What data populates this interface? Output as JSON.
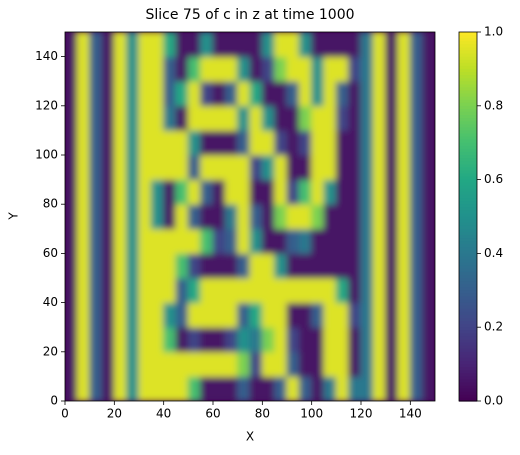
{
  "chart_data": {
    "type": "heatmap",
    "title": "Slice 75 of c in z at time 1000",
    "x_label": "X",
    "y_label": "Y",
    "xlim": [
      0,
      150
    ],
    "ylim": [
      0,
      150
    ],
    "xticks": [
      0,
      20,
      40,
      60,
      80,
      100,
      120,
      140
    ],
    "yticks": [
      0,
      20,
      40,
      60,
      80,
      100,
      120,
      140
    ],
    "colormap": "viridis",
    "clim": [
      0,
      1
    ],
    "cticks": [
      {
        "value": 0,
        "label": "0.0"
      },
      0.2,
      0.4,
      0.6,
      0.8,
      {
        "value": 1,
        "label": "1.0"
      }
    ],
    "x": [
      2.5,
      7.5,
      12.5,
      17.5,
      22.5,
      27.5,
      32.5,
      37.5,
      42.5,
      47.5,
      52.5,
      57.5,
      62.5,
      67.5,
      72.5,
      77.5,
      82.5,
      87.5,
      92.5,
      97.5,
      102.5,
      107.5,
      112.5,
      117.5,
      122.5,
      127.5,
      132.5,
      137.5,
      142.5,
      147.5
    ],
    "y": [
      5,
      15,
      25,
      35,
      45,
      55,
      65,
      75,
      85,
      95,
      105,
      115,
      125,
      135,
      145
    ],
    "z": [
      [
        0.05,
        0.95,
        0.3,
        0.05,
        0.95,
        0.5,
        0.95,
        0.95,
        0.95,
        0.95,
        0.7,
        0.05,
        0.05,
        0.05,
        0.3,
        0.05,
        0.05,
        0.3,
        0.95,
        0.3,
        0.05,
        0.4,
        0.95,
        0.4,
        0.4,
        0.95,
        0.05,
        0.95,
        0.3,
        0.05
      ],
      [
        0.05,
        0.95,
        0.3,
        0.05,
        0.95,
        0.5,
        0.95,
        0.95,
        0.95,
        0.95,
        0.95,
        0.95,
        0.95,
        0.95,
        0.8,
        0.2,
        0.95,
        0.95,
        0.3,
        0.05,
        0.05,
        0.95,
        0.95,
        0.05,
        0.4,
        0.95,
        0.05,
        0.95,
        0.3,
        0.05
      ],
      [
        0.05,
        0.95,
        0.3,
        0.05,
        0.95,
        0.5,
        0.95,
        0.95,
        0.7,
        0.05,
        0.2,
        0.05,
        0.05,
        0.2,
        0.5,
        0.4,
        0.8,
        0.95,
        0.2,
        0.05,
        0.05,
        0.95,
        0.95,
        0.05,
        0.4,
        0.95,
        0.05,
        0.95,
        0.3,
        0.05
      ],
      [
        0.05,
        0.95,
        0.3,
        0.05,
        0.95,
        0.5,
        0.95,
        0.95,
        0.5,
        0.3,
        0.95,
        0.95,
        0.95,
        0.95,
        0.3,
        0.6,
        0.95,
        0.95,
        0.05,
        0.05,
        0.3,
        0.95,
        0.95,
        0.2,
        0.4,
        0.95,
        0.05,
        0.95,
        0.3,
        0.05
      ],
      [
        0.05,
        0.95,
        0.3,
        0.05,
        0.95,
        0.5,
        0.95,
        0.95,
        0.95,
        0.3,
        0.6,
        0.95,
        0.95,
        0.95,
        0.95,
        0.95,
        0.95,
        0.95,
        0.95,
        0.95,
        0.95,
        0.95,
        0.6,
        0.05,
        0.4,
        0.95,
        0.05,
        0.95,
        0.3,
        0.05
      ],
      [
        0.05,
        0.95,
        0.3,
        0.05,
        0.95,
        0.5,
        0.95,
        0.95,
        0.95,
        0.7,
        0.2,
        0.05,
        0.05,
        0.05,
        0.3,
        0.95,
        0.95,
        0.5,
        0.05,
        0.05,
        0.05,
        0.05,
        0.05,
        0.05,
        0.4,
        0.95,
        0.05,
        0.95,
        0.3,
        0.05
      ],
      [
        0.05,
        0.95,
        0.3,
        0.05,
        0.95,
        0.5,
        0.95,
        0.95,
        0.95,
        0.95,
        0.95,
        0.7,
        0.2,
        0.3,
        0.95,
        0.5,
        0.05,
        0.05,
        0.3,
        0.4,
        0.05,
        0.05,
        0.05,
        0.05,
        0.4,
        0.95,
        0.05,
        0.95,
        0.3,
        0.05
      ],
      [
        0.05,
        0.95,
        0.3,
        0.05,
        0.95,
        0.5,
        0.95,
        0.5,
        0.05,
        0.95,
        0.3,
        0.05,
        0.05,
        0.4,
        0.95,
        0.3,
        0.05,
        0.8,
        0.95,
        0.95,
        0.8,
        0.05,
        0.05,
        0.05,
        0.4,
        0.95,
        0.05,
        0.95,
        0.3,
        0.05
      ],
      [
        0.05,
        0.95,
        0.3,
        0.05,
        0.95,
        0.5,
        0.95,
        0.5,
        0.05,
        0.7,
        0.95,
        0.3,
        0.05,
        0.95,
        0.95,
        0.05,
        0.05,
        0.95,
        0.2,
        0.7,
        0.95,
        0.5,
        0.05,
        0.05,
        0.4,
        0.95,
        0.05,
        0.95,
        0.3,
        0.05
      ],
      [
        0.05,
        0.95,
        0.3,
        0.05,
        0.95,
        0.5,
        0.95,
        0.95,
        0.95,
        0.95,
        0.3,
        0.95,
        0.95,
        0.95,
        0.95,
        0.2,
        0.5,
        0.95,
        0.05,
        0.05,
        0.95,
        0.95,
        0.05,
        0.05,
        0.4,
        0.95,
        0.05,
        0.95,
        0.3,
        0.05
      ],
      [
        0.05,
        0.95,
        0.3,
        0.05,
        0.95,
        0.5,
        0.95,
        0.95,
        0.95,
        0.95,
        0.5,
        0.05,
        0.05,
        0.05,
        0.3,
        0.95,
        0.95,
        0.2,
        0.05,
        0.2,
        0.95,
        0.95,
        0.05,
        0.05,
        0.4,
        0.95,
        0.05,
        0.95,
        0.3,
        0.05
      ],
      [
        0.05,
        0.95,
        0.3,
        0.05,
        0.95,
        0.5,
        0.95,
        0.95,
        0.4,
        0.05,
        0.95,
        0.95,
        0.95,
        0.95,
        0.5,
        0.95,
        0.5,
        0.05,
        0.05,
        0.8,
        0.95,
        0.95,
        0.2,
        0.05,
        0.4,
        0.95,
        0.05,
        0.95,
        0.3,
        0.05
      ],
      [
        0.05,
        0.95,
        0.3,
        0.05,
        0.95,
        0.5,
        0.95,
        0.95,
        0.3,
        0.6,
        0.95,
        0.2,
        0.05,
        0.3,
        0.95,
        0.6,
        0.05,
        0.05,
        0.3,
        0.95,
        0.5,
        0.95,
        0.3,
        0.05,
        0.4,
        0.95,
        0.05,
        0.95,
        0.3,
        0.05
      ],
      [
        0.05,
        0.95,
        0.3,
        0.05,
        0.95,
        0.5,
        0.95,
        0.95,
        0.3,
        0.05,
        0.7,
        0.95,
        0.95,
        0.95,
        0.5,
        0.05,
        0.2,
        0.8,
        0.95,
        0.95,
        0.5,
        0.95,
        0.95,
        0.2,
        0.4,
        0.95,
        0.05,
        0.95,
        0.3,
        0.05
      ],
      [
        0.05,
        0.95,
        0.3,
        0.05,
        0.95,
        0.5,
        0.95,
        0.95,
        0.6,
        0.05,
        0.05,
        0.5,
        0.05,
        0.05,
        0.05,
        0.05,
        0.5,
        0.95,
        0.95,
        0.5,
        0.05,
        0.05,
        0.05,
        0.05,
        0.4,
        0.95,
        0.05,
        0.95,
        0.3,
        0.05
      ]
    ]
  }
}
